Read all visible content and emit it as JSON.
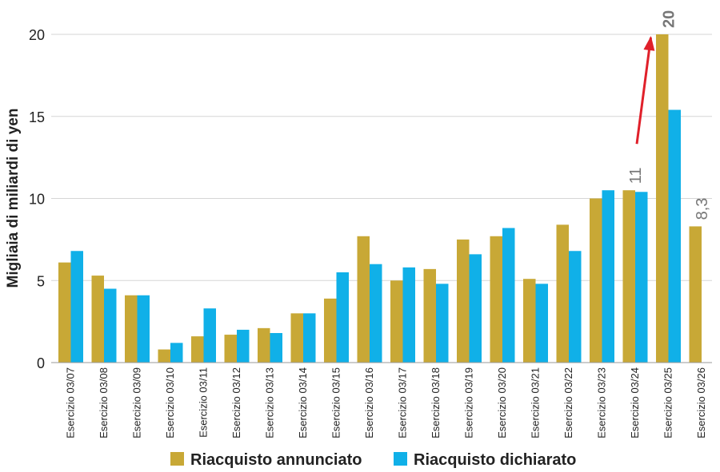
{
  "chart_data": {
    "type": "bar",
    "ylabel": "Migliaia di miliardi di yen",
    "xlabel": "",
    "title": "",
    "ylim": [
      0,
      20
    ],
    "yticks": [
      "0",
      "5",
      "10",
      "15",
      "20"
    ],
    "grid": true,
    "legend_position": "bottom",
    "categories": [
      "Esercizio 03/07",
      "Esercizio 03/08",
      "Esercizio 03/09",
      "Esercizio 03/10",
      "Esercizio 03/11",
      "Esercizio 03/12",
      "Esercizio 03/13",
      "Esercizio 03/14",
      "Esercizio 03/15",
      "Esercizio 03/16",
      "Esercizio 03/17",
      "Esercizio 03/18",
      "Esercizio 03/19",
      "Esercizio 03/20",
      "Esercizio 03/21",
      "Esercizio 03/22",
      "Esercizio 03/23",
      "Esercizio 03/24",
      "Esercizio 03/25",
      "Esercizio 03/26"
    ],
    "series": [
      {
        "name": "Riacquisto annunciato",
        "color": "#c8a836",
        "values": [
          6.1,
          5.3,
          4.1,
          0.8,
          1.6,
          1.7,
          2.1,
          3.0,
          3.9,
          7.7,
          5.0,
          5.7,
          7.5,
          7.7,
          5.1,
          8.4,
          10.0,
          10.5,
          20.0,
          8.3
        ]
      },
      {
        "name": "Riacquisto dichiarato",
        "color": "#10b0e8",
        "values": [
          6.8,
          4.5,
          4.1,
          1.2,
          3.3,
          2.0,
          1.8,
          3.0,
          5.5,
          6.0,
          5.8,
          4.8,
          6.6,
          8.2,
          4.8,
          6.8,
          10.5,
          10.4,
          15.4,
          null
        ]
      }
    ],
    "annotations": [
      {
        "text": "11",
        "category": "Esercizio 03/24",
        "value": 10.5,
        "bold": false
      },
      {
        "text": "20",
        "category": "Esercizio 03/25",
        "value": 20,
        "bold": true
      },
      {
        "text": "8,3",
        "category": "Esercizio 03/26",
        "value": 8.3,
        "bold": false
      }
    ],
    "arrow_color": "#e0202a"
  }
}
